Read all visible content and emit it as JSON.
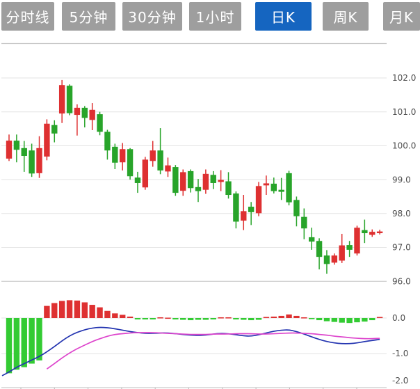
{
  "toolbar": {
    "tabs": [
      {
        "label": "分时线",
        "active": false
      },
      {
        "label": "5分钟",
        "active": false
      },
      {
        "label": "30分钟",
        "active": false
      },
      {
        "label": "1小时",
        "active": false
      },
      {
        "label": "日K",
        "active": true
      },
      {
        "label": "周K",
        "active": false
      },
      {
        "label": "月K",
        "active": false
      }
    ]
  },
  "colors": {
    "tab_inactive": "#9e9e9e",
    "tab_active": "#1565c0",
    "up_red": "#de3031",
    "down_green": "#28a42a",
    "macd_red": "#de3031",
    "macd_green": "#33cb33",
    "dif_line": "#2233b0",
    "dea_line": "#dd44cc",
    "gridline": "#e3e3e3",
    "border": "#c9c9c9",
    "label_text": "#4d4d4d"
  },
  "chart_data": {
    "type": "candlestick_with_macd",
    "title": "",
    "legend": "none",
    "grid": "horizontal-only",
    "price_pane": {
      "yticks": [
        102.0,
        101.0,
        100.0,
        99.0,
        98.0,
        97.0,
        96.0
      ],
      "ylim": [
        95.9,
        103.1
      ],
      "tick_format": "0.1f",
      "ohlc_order": [
        "open",
        "close",
        "high",
        "low"
      ],
      "candles": [
        [
          99.62,
          100.15,
          100.33,
          99.55
        ],
        [
          100.15,
          99.88,
          100.33,
          99.51
        ],
        [
          99.93,
          99.7,
          100.14,
          99.23
        ],
        [
          99.86,
          99.18,
          100.06,
          99.08
        ],
        [
          99.19,
          99.93,
          100.28,
          99.05
        ],
        [
          99.68,
          100.65,
          100.78,
          99.57
        ],
        [
          100.61,
          100.36,
          100.75,
          100.1
        ],
        [
          100.95,
          101.79,
          101.94,
          100.67
        ],
        [
          101.77,
          100.96,
          101.81,
          100.9
        ],
        [
          100.91,
          101.12,
          101.22,
          100.3
        ],
        [
          101.12,
          100.82,
          101.17,
          100.54
        ],
        [
          100.76,
          101.06,
          101.26,
          100.46
        ],
        [
          100.93,
          100.41,
          101.0,
          100.31
        ],
        [
          100.41,
          99.86,
          100.47,
          99.59
        ],
        [
          99.97,
          99.5,
          100.06,
          99.31
        ],
        [
          99.51,
          99.9,
          100.08,
          99.27
        ],
        [
          99.9,
          99.1,
          99.93,
          99.0
        ],
        [
          99.06,
          98.9,
          99.23,
          98.61
        ],
        [
          98.77,
          99.59,
          99.67,
          98.7
        ],
        [
          99.55,
          99.86,
          100.14,
          99.38
        ],
        [
          99.86,
          99.27,
          100.52,
          99.16
        ],
        [
          99.24,
          99.42,
          99.65,
          99.08
        ],
        [
          99.37,
          98.61,
          99.43,
          98.52
        ],
        [
          98.67,
          99.22,
          99.3,
          98.52
        ],
        [
          99.25,
          98.75,
          99.3,
          98.62
        ],
        [
          98.78,
          98.66,
          99.02,
          98.34
        ],
        [
          98.7,
          99.17,
          99.3,
          98.58
        ],
        [
          99.14,
          98.9,
          99.25,
          98.72
        ],
        [
          98.93,
          98.99,
          99.28,
          98.66
        ],
        [
          98.95,
          98.55,
          99.22,
          98.44
        ],
        [
          98.59,
          97.76,
          98.65,
          97.56
        ],
        [
          97.79,
          98.07,
          98.55,
          97.51
        ],
        [
          98.2,
          98.04,
          98.34,
          97.66
        ],
        [
          98.01,
          98.81,
          98.93,
          97.92
        ],
        [
          98.83,
          98.89,
          99.12,
          98.55
        ],
        [
          98.88,
          98.66,
          99.06,
          98.59
        ],
        [
          98.7,
          98.64,
          99.05,
          98.4
        ],
        [
          99.19,
          98.33,
          99.26,
          98.24
        ],
        [
          98.4,
          97.92,
          98.5,
          97.62
        ],
        [
          97.9,
          97.56,
          98.15,
          97.24
        ],
        [
          97.3,
          97.17,
          97.58,
          96.93
        ],
        [
          97.19,
          96.72,
          97.27,
          96.35
        ],
        [
          96.76,
          96.51,
          96.92,
          96.22
        ],
        [
          96.55,
          96.76,
          96.82,
          96.49
        ],
        [
          96.61,
          97.06,
          97.4,
          96.54
        ],
        [
          97.07,
          96.93,
          97.19,
          96.72
        ],
        [
          96.82,
          97.58,
          97.64,
          96.76
        ],
        [
          97.51,
          97.42,
          97.82,
          97.13
        ],
        [
          97.37,
          97.46,
          97.53,
          97.31
        ],
        [
          97.42,
          97.47,
          97.52,
          97.38
        ]
      ]
    },
    "macd_pane": {
      "yticks": [
        0.0,
        -1.0,
        -2.0
      ],
      "ylim": [
        -2.0,
        0.85
      ],
      "tick_format": "0.1f",
      "histogram": [
        -1.55,
        -1.45,
        -1.38,
        -1.28,
        -1.19,
        0.34,
        0.42,
        0.48,
        0.5,
        0.49,
        0.44,
        0.37,
        0.3,
        0.2,
        0.13,
        0.09,
        0.04,
        -0.04,
        -0.04,
        -0.04,
        0.02,
        0.01,
        -0.04,
        -0.05,
        -0.06,
        -0.05,
        -0.05,
        -0.04,
        0.02,
        0.02,
        -0.04,
        -0.05,
        -0.06,
        -0.05,
        0.03,
        0.04,
        0.06,
        0.1,
        0.06,
        0.02,
        -0.03,
        -0.06,
        -0.09,
        -0.11,
        -0.13,
        -0.14,
        -0.12,
        -0.1,
        -0.06,
        0.03
      ],
      "dif_lead_value": -1.62,
      "dif": [
        -1.52,
        -1.38,
        -1.28,
        -1.18,
        -1.08,
        -0.95,
        -0.8,
        -0.64,
        -0.5,
        -0.4,
        -0.33,
        -0.28,
        -0.26,
        -0.27,
        -0.3,
        -0.34,
        -0.38,
        -0.41,
        -0.43,
        -0.43,
        -0.42,
        -0.42,
        -0.44,
        -0.46,
        -0.48,
        -0.49,
        -0.48,
        -0.45,
        -0.43,
        -0.44,
        -0.47,
        -0.5,
        -0.51,
        -0.47,
        -0.42,
        -0.37,
        -0.34,
        -0.33,
        -0.38,
        -0.45,
        -0.53,
        -0.6,
        -0.66,
        -0.7,
        -0.72,
        -0.72,
        -0.7,
        -0.66,
        -0.63,
        -0.6
      ],
      "dea_start_index": 5,
      "dea": [
        -1.43,
        -1.28,
        -1.12,
        -0.98,
        -0.86,
        -0.76,
        -0.66,
        -0.58,
        -0.51,
        -0.46,
        -0.44,
        -0.42,
        -0.41,
        -0.41,
        -0.41,
        -0.42,
        -0.43,
        -0.44,
        -0.45,
        -0.46,
        -0.46,
        -0.46,
        -0.45,
        -0.45,
        -0.45,
        -0.44,
        -0.44,
        -0.44,
        -0.45,
        -0.45,
        -0.44,
        -0.43,
        -0.42,
        -0.42,
        -0.43,
        -0.44,
        -0.46,
        -0.48,
        -0.51,
        -0.53,
        -0.55,
        -0.57,
        -0.58,
        -0.58,
        -0.57
      ]
    }
  }
}
